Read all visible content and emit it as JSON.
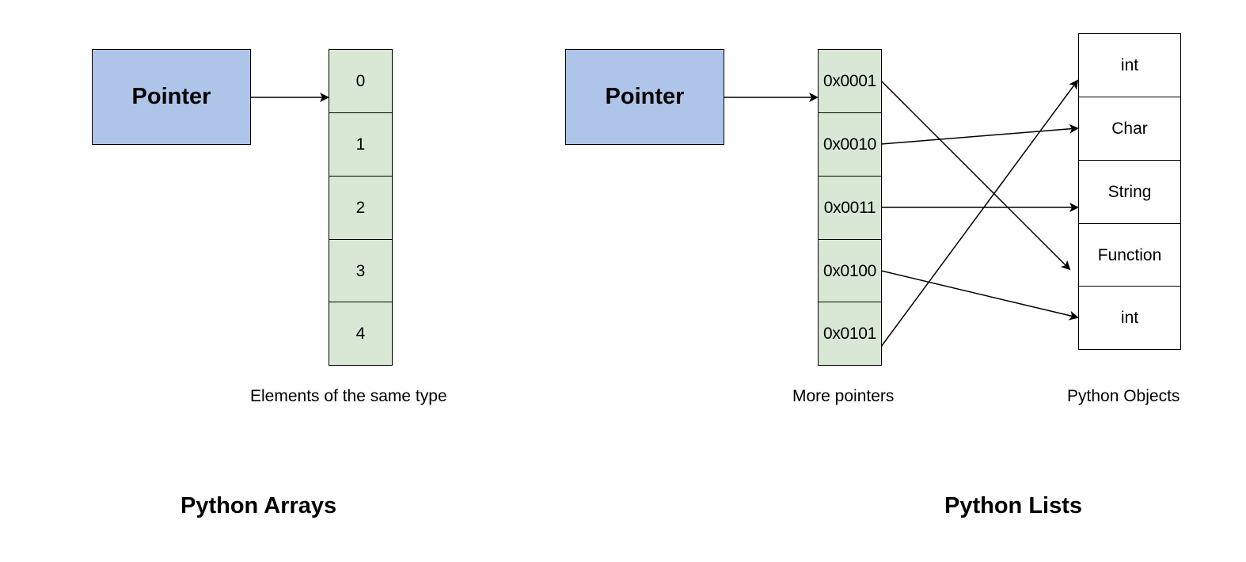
{
  "arrays": {
    "pointer_label": "Pointer",
    "cells": [
      "0",
      "1",
      "2",
      "3",
      "4"
    ],
    "caption": "Elements of the same type",
    "title": "Python Arrays"
  },
  "lists": {
    "pointer_label": "Pointer",
    "addresses": [
      "0x0001",
      "0x0010",
      "0x0011",
      "0x0100",
      "0x0101"
    ],
    "addresses_caption": "More pointers",
    "objects": [
      "int",
      "Char",
      "String",
      "Function",
      "int"
    ],
    "objects_caption": "Python Objects",
    "title": "Python Lists",
    "links": [
      {
        "from": 0,
        "to": 3
      },
      {
        "from": 1,
        "to": 1
      },
      {
        "from": 2,
        "to": 2
      },
      {
        "from": 3,
        "to": 4
      },
      {
        "from": 4,
        "to": 0
      }
    ]
  },
  "colors": {
    "pointer_fill": "#aec4e9",
    "cell_fill": "#d9e8d5",
    "object_fill": "#ffffff",
    "stroke": "#000000"
  }
}
